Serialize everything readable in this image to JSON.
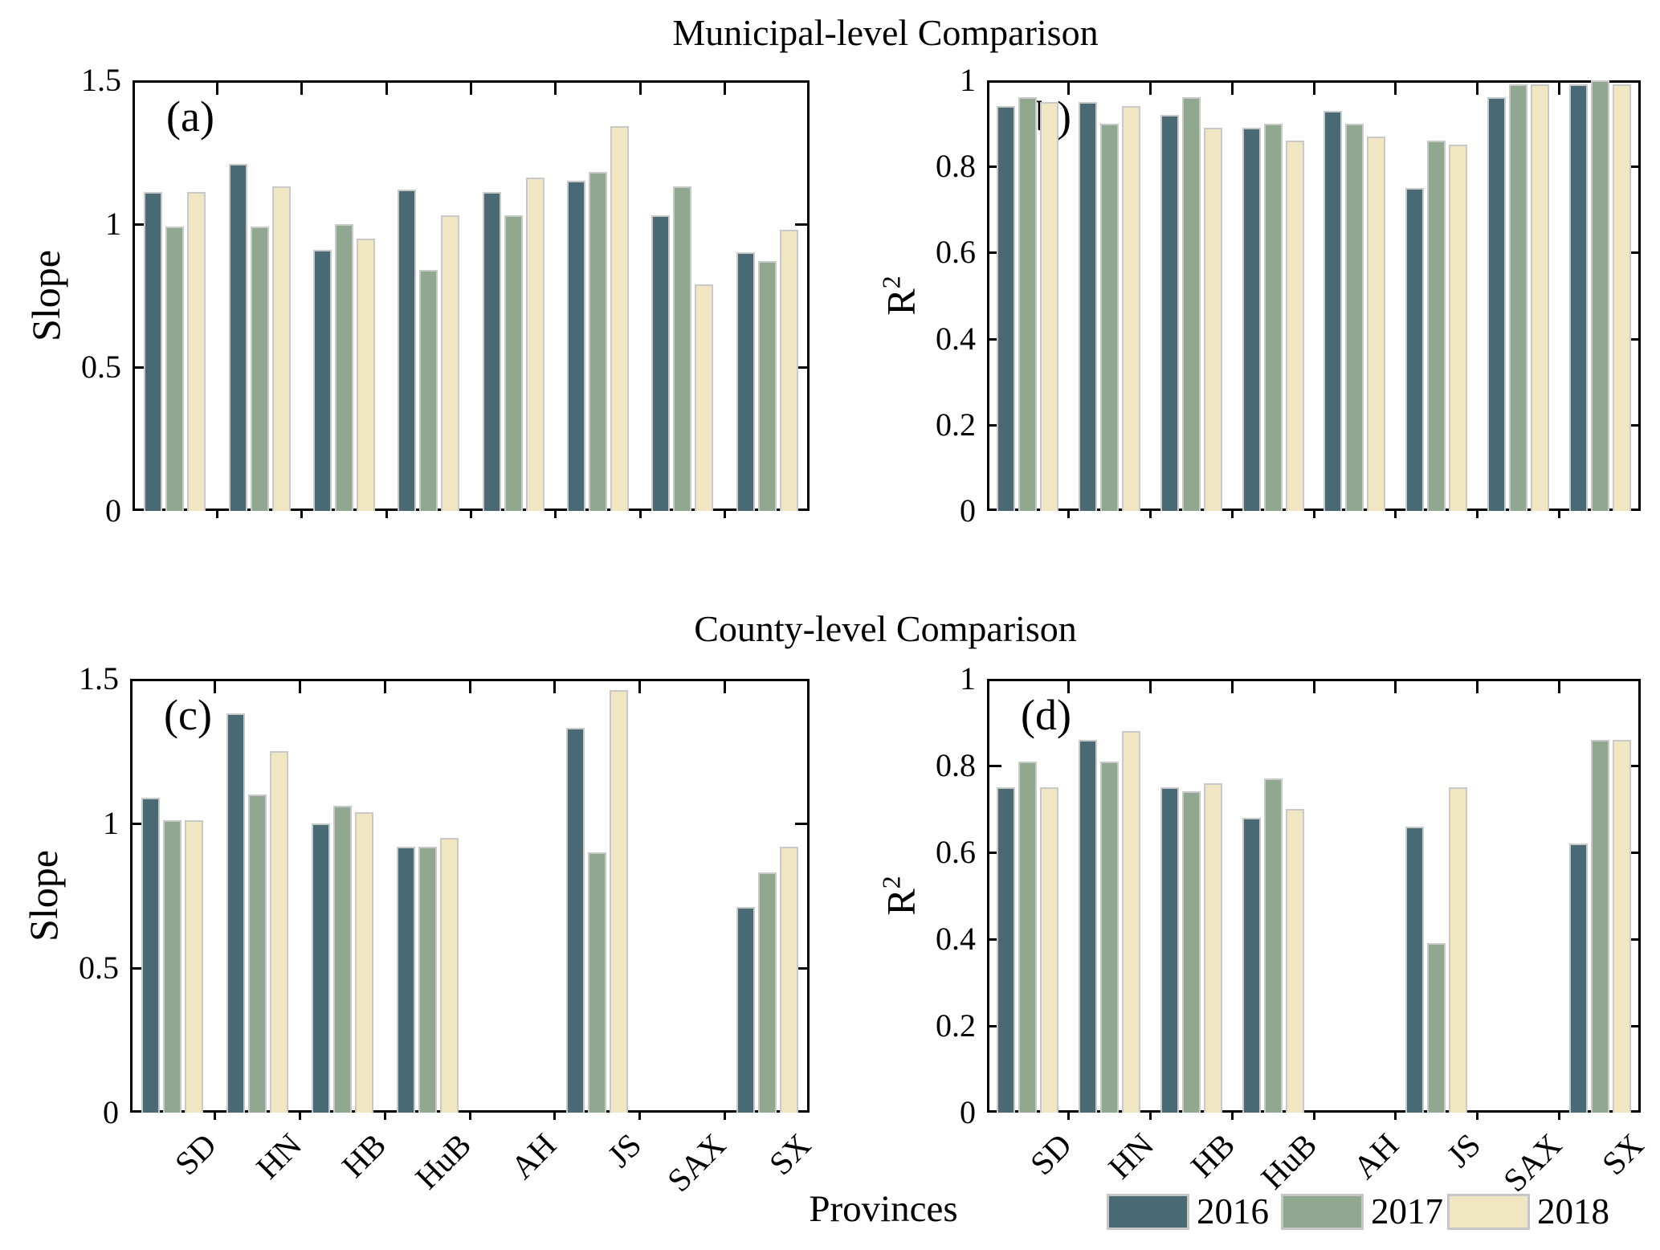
{
  "figure": {
    "row_titles": [
      "Municipal-level Comparison",
      "County-level Comparison"
    ],
    "x_axis_label": "Provinces",
    "series_colors": {
      "2016": "#496a75",
      "2017": "#8fa88f",
      "2018": "#f0e6c2"
    },
    "bar_edge_color": "#c9c9c9",
    "axis_color": "#000000"
  },
  "legend": {
    "entries": [
      {
        "label": "2016",
        "color": "#496a75"
      },
      {
        "label": "2017",
        "color": "#8fa88f"
      },
      {
        "label": "2018",
        "color": "#f0e6c2"
      }
    ]
  },
  "chart_data": [
    {
      "type": "bar",
      "panel_label": "(a)",
      "row_title": "Municipal-level Comparison",
      "ylabel": "Slope",
      "ylim": [
        0,
        1.5
      ],
      "yticks": [
        {
          "v": 0,
          "label": "0"
        },
        {
          "v": 0.5,
          "label": "0.5"
        },
        {
          "v": 1,
          "label": "1"
        },
        {
          "v": 1.5,
          "label": "1.5"
        }
      ],
      "categories": [
        "SD",
        "HN",
        "HB",
        "HuB",
        "AH",
        "JS",
        "SAX",
        "SX"
      ],
      "series": [
        {
          "name": "2016",
          "values": [
            1.11,
            1.21,
            0.91,
            1.12,
            1.11,
            1.15,
            1.03,
            0.9
          ]
        },
        {
          "name": "2017",
          "values": [
            0.99,
            0.99,
            1.0,
            0.84,
            1.03,
            1.18,
            1.13,
            0.87
          ]
        },
        {
          "name": "2018",
          "values": [
            1.11,
            1.13,
            0.95,
            1.03,
            1.16,
            1.34,
            0.79,
            0.98
          ]
        }
      ],
      "legend_position": "none",
      "grid": false
    },
    {
      "type": "bar",
      "panel_label": "(b)",
      "row_title": "Municipal-level Comparison",
      "ylabel": "R²",
      "ylim": [
        0,
        1
      ],
      "yticks": [
        {
          "v": 0,
          "label": "0"
        },
        {
          "v": 0.2,
          "label": "0.2"
        },
        {
          "v": 0.4,
          "label": "0.4"
        },
        {
          "v": 0.6,
          "label": "0.6"
        },
        {
          "v": 0.8,
          "label": "0.8"
        },
        {
          "v": 1,
          "label": "1"
        }
      ],
      "categories": [
        "SD",
        "HN",
        "HB",
        "HuB",
        "AH",
        "JS",
        "SAX",
        "SX"
      ],
      "series": [
        {
          "name": "2016",
          "values": [
            0.94,
            0.95,
            0.92,
            0.89,
            0.93,
            0.75,
            0.96,
            0.99
          ]
        },
        {
          "name": "2017",
          "values": [
            0.96,
            0.9,
            0.96,
            0.9,
            0.9,
            0.86,
            0.99,
            1.0
          ]
        },
        {
          "name": "2018",
          "values": [
            0.95,
            0.94,
            0.89,
            0.86,
            0.87,
            0.85,
            0.99,
            0.99
          ]
        }
      ],
      "legend_position": "none",
      "grid": false
    },
    {
      "type": "bar",
      "panel_label": "(c)",
      "row_title": "County-level Comparison",
      "ylabel": "Slope",
      "ylim": [
        0,
        1.5
      ],
      "yticks": [
        {
          "v": 0,
          "label": "0"
        },
        {
          "v": 0.5,
          "label": "0.5"
        },
        {
          "v": 1,
          "label": "1"
        },
        {
          "v": 1.5,
          "label": "1.5"
        }
      ],
      "categories": [
        "SD",
        "HN",
        "HB",
        "HuB",
        "AH",
        "JS",
        "SAX",
        "SX"
      ],
      "series": [
        {
          "name": "2016",
          "values": [
            1.09,
            1.38,
            1.0,
            0.92,
            0,
            1.33,
            0,
            0.71
          ]
        },
        {
          "name": "2017",
          "values": [
            1.01,
            1.1,
            1.06,
            0.92,
            0,
            0.9,
            0,
            0.83
          ]
        },
        {
          "name": "2018",
          "values": [
            1.01,
            1.25,
            1.04,
            0.95,
            0,
            1.46,
            0,
            0.92
          ]
        }
      ],
      "legend_position": "none",
      "grid": false
    },
    {
      "type": "bar",
      "panel_label": "(d)",
      "row_title": "County-level Comparison",
      "ylabel": "R²",
      "ylim": [
        0,
        1
      ],
      "yticks": [
        {
          "v": 0,
          "label": "0"
        },
        {
          "v": 0.2,
          "label": "0.2"
        },
        {
          "v": 0.4,
          "label": "0.4"
        },
        {
          "v": 0.6,
          "label": "0.6"
        },
        {
          "v": 0.8,
          "label": "0.8"
        },
        {
          "v": 1,
          "label": "1"
        }
      ],
      "categories": [
        "SD",
        "HN",
        "HB",
        "HuB",
        "AH",
        "JS",
        "SAX",
        "SX"
      ],
      "series": [
        {
          "name": "2016",
          "values": [
            0.75,
            0.86,
            0.75,
            0.68,
            0,
            0.66,
            0,
            0.62
          ]
        },
        {
          "name": "2017",
          "values": [
            0.81,
            0.81,
            0.74,
            0.77,
            0,
            0.39,
            0,
            0.86
          ]
        },
        {
          "name": "2018",
          "values": [
            0.75,
            0.88,
            0.76,
            0.7,
            0,
            0.75,
            0,
            0.86
          ]
        }
      ],
      "legend_position": "none",
      "grid": false
    }
  ]
}
